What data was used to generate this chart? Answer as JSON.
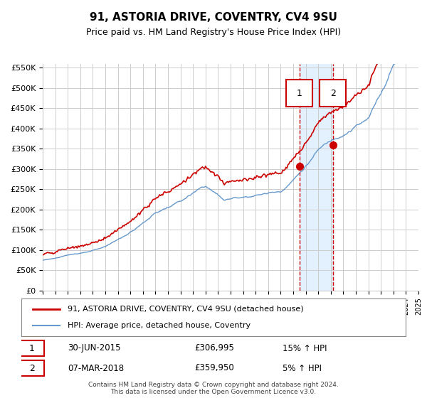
{
  "title": "91, ASTORIA DRIVE, COVENTRY, CV4 9SU",
  "subtitle": "Price paid vs. HM Land Registry's House Price Index (HPI)",
  "legend_line1": "91, ASTORIA DRIVE, COVENTRY, CV4 9SU (detached house)",
  "legend_line2": "HPI: Average price, detached house, Coventry",
  "footer1": "Contains HM Land Registry data © Crown copyright and database right 2024.",
  "footer2": "This data is licensed under the Open Government Licence v3.0.",
  "annotation1_label": "1",
  "annotation1_date": "30-JUN-2015",
  "annotation1_price": "£306,995",
  "annotation1_hpi": "15% ↑ HPI",
  "annotation2_label": "2",
  "annotation2_date": "07-MAR-2018",
  "annotation2_price": "£359,950",
  "annotation2_hpi": "5% ↑ HPI",
  "vline1_x": 2015.5,
  "vline2_x": 2018.17,
  "dot1_x": 2015.5,
  "dot1_y": 306995,
  "dot2_x": 2018.17,
  "dot2_y": 359950,
  "shade_x1": 2015.5,
  "shade_x2": 2018.17,
  "ylim": [
    0,
    560000
  ],
  "xlim": [
    1995,
    2025
  ],
  "red_color": "#cc0000",
  "blue_color": "#6699cc",
  "shade_color": "#ddeeff",
  "grid_color": "#cccccc",
  "bg_color": "#ffffff",
  "title_fontsize": 11,
  "subtitle_fontsize": 9
}
